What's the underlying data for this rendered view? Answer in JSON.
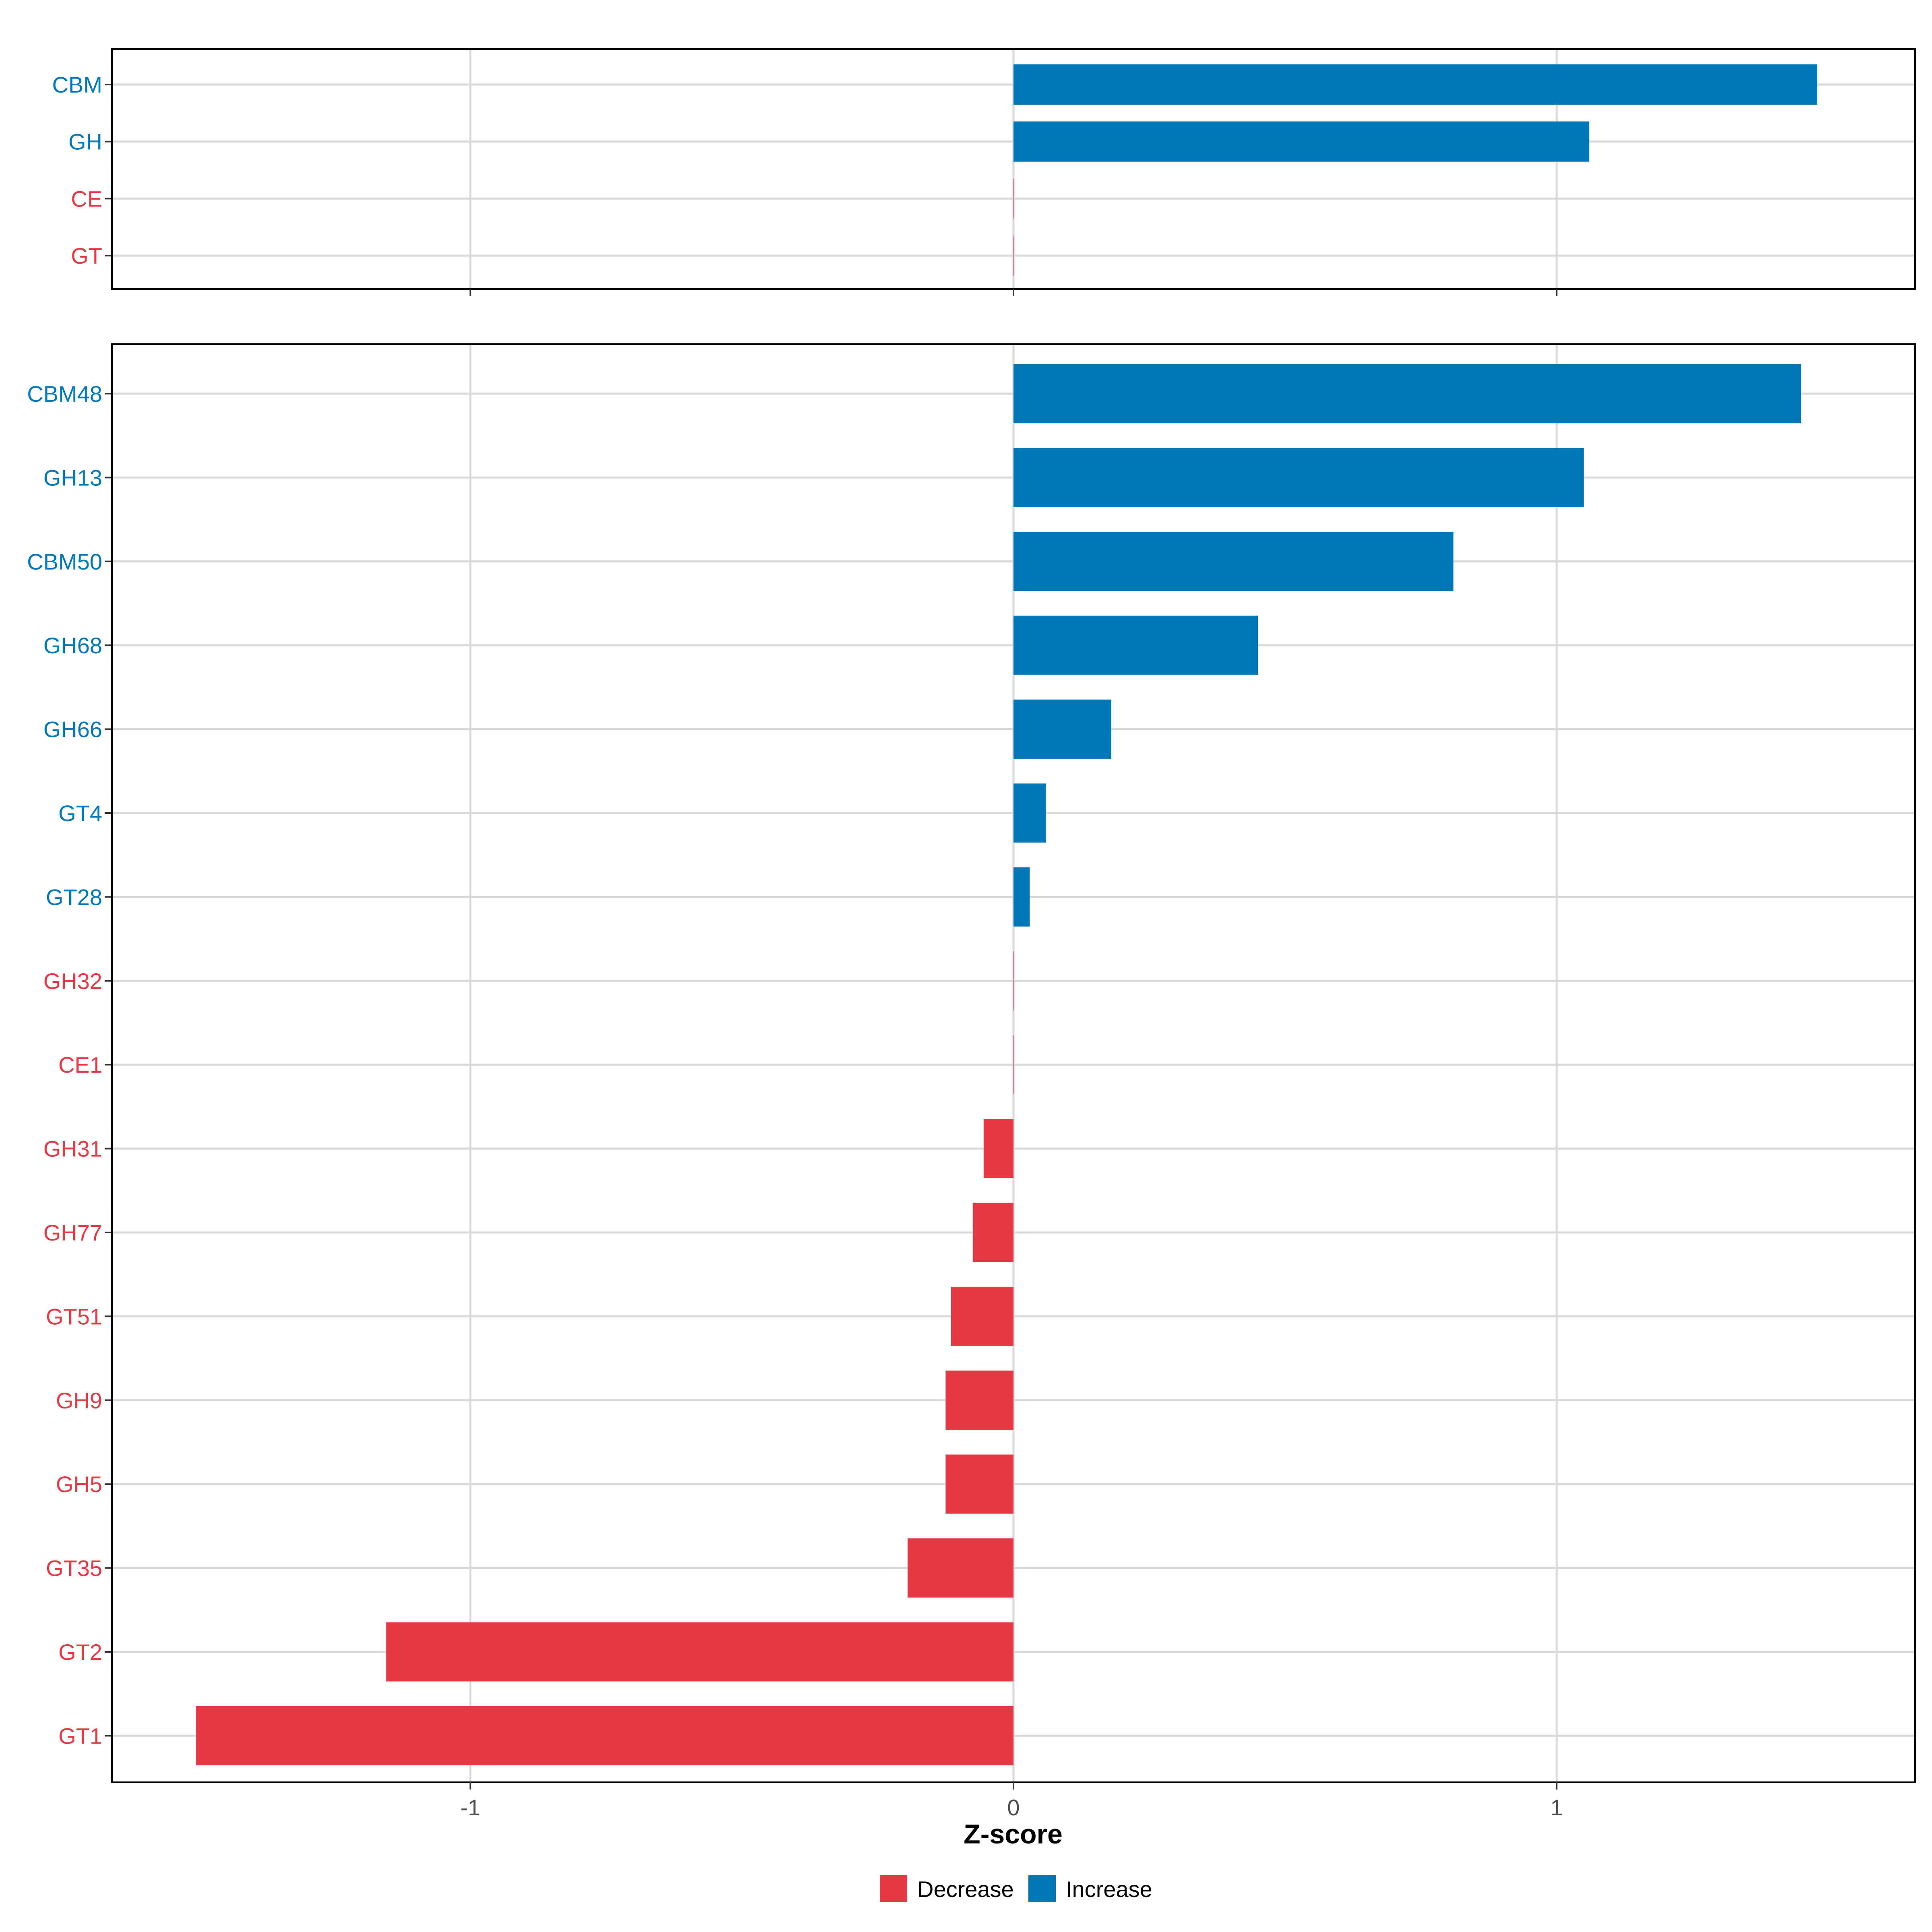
{
  "chart_data": [
    {
      "type": "bar",
      "orientation": "horizontal",
      "panel": "top",
      "categories": [
        "CBM",
        "GH",
        "CE",
        "GT"
      ],
      "values": [
        1.48,
        1.06,
        0.0,
        0.0
      ],
      "directions": [
        "Increase",
        "Increase",
        "Decrease",
        "Decrease"
      ],
      "xlim": [
        -1.66,
        1.66
      ],
      "xticks": [
        -1,
        0,
        1
      ],
      "grid": true
    },
    {
      "type": "bar",
      "orientation": "horizontal",
      "panel": "bottom",
      "categories": [
        "CBM48",
        "GH13",
        "CBM50",
        "GH68",
        "GH66",
        "GT4",
        "GT28",
        "GH32",
        "CE1",
        "GH31",
        "GH77",
        "GT51",
        "GH9",
        "GH5",
        "GT35",
        "GT2",
        "GT1"
      ],
      "values": [
        1.45,
        1.05,
        0.81,
        0.45,
        0.18,
        0.06,
        0.03,
        0.0,
        0.0,
        -0.055,
        -0.075,
        -0.115,
        -0.125,
        -0.125,
        -0.195,
        -1.155,
        -1.505
      ],
      "directions": [
        "Increase",
        "Increase",
        "Increase",
        "Increase",
        "Increase",
        "Increase",
        "Increase",
        "Decrease",
        "Decrease",
        "Decrease",
        "Decrease",
        "Decrease",
        "Decrease",
        "Decrease",
        "Decrease",
        "Decrease",
        "Decrease"
      ],
      "xlim": [
        -1.66,
        1.66
      ],
      "xticks": [
        -1,
        0,
        1
      ],
      "xtick_labels": [
        "-1",
        "0",
        "1"
      ],
      "xlabel": "Z-score",
      "grid": true
    }
  ],
  "legend": {
    "placement": "bottom",
    "items": [
      {
        "label": "Decrease",
        "color": "#E63946"
      },
      {
        "label": "Increase",
        "color": "#0077B6"
      }
    ]
  },
  "colors": {
    "Decrease": "#E63946",
    "Increase": "#0077B6"
  }
}
